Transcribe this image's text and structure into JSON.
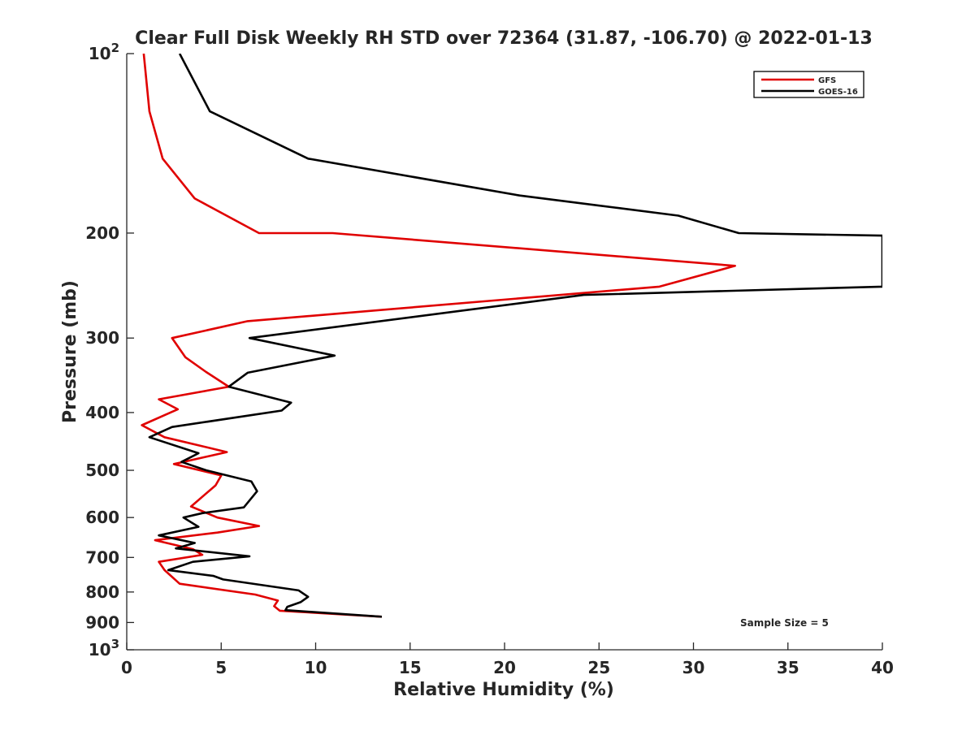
{
  "chart_data": {
    "type": "line",
    "title": "Clear Full Disk Weekly RH STD over 72364 (31.87, -106.70) @ 2022-01-13",
    "xlabel": "Relative Humidity (%)",
    "ylabel": "Pressure (mb)",
    "xlim": [
      0,
      40
    ],
    "ylim": [
      100,
      1000
    ],
    "y_scale": "log",
    "y_reversed": true,
    "grid": false,
    "legend_position": "top-right",
    "x_ticks": [
      "0",
      "5",
      "10",
      "15",
      "20",
      "25",
      "30",
      "35",
      "40"
    ],
    "x_tick_values": [
      0,
      5,
      10,
      15,
      20,
      25,
      30,
      35,
      40
    ],
    "y_ticks": [
      {
        "value": 100,
        "base": "10",
        "exp": "2"
      },
      {
        "value": 200,
        "base": "200",
        "exp": ""
      },
      {
        "value": 300,
        "base": "300",
        "exp": ""
      },
      {
        "value": 400,
        "base": "400",
        "exp": ""
      },
      {
        "value": 500,
        "base": "500",
        "exp": ""
      },
      {
        "value": 600,
        "base": "600",
        "exp": ""
      },
      {
        "value": 700,
        "base": "700",
        "exp": ""
      },
      {
        "value": 800,
        "base": "800",
        "exp": ""
      },
      {
        "value": 900,
        "base": "900",
        "exp": ""
      },
      {
        "value": 1000,
        "base": "10",
        "exp": "3"
      }
    ],
    "annotation": "Sample Size = 5",
    "series": [
      {
        "name": "GFS",
        "color": "#e00000",
        "points": [
          [
            0.9,
            100
          ],
          [
            1.2,
            125
          ],
          [
            1.9,
            150
          ],
          [
            3.6,
            175
          ],
          [
            7,
            200
          ],
          [
            10.9,
            200
          ],
          [
            32.2,
            227
          ],
          [
            28.2,
            246
          ],
          [
            6.4,
            281
          ],
          [
            2.4,
            300
          ],
          [
            3.1,
            323
          ],
          [
            4.2,
            342
          ],
          [
            5.4,
            362
          ],
          [
            1.7,
            380
          ],
          [
            2.7,
            395
          ],
          [
            0.8,
            420
          ],
          [
            2.0,
            440
          ],
          [
            5.3,
            466
          ],
          [
            2.5,
            488
          ],
          [
            5.0,
            510
          ],
          [
            4.7,
            530
          ],
          [
            3.4,
            575
          ],
          [
            4.8,
            600
          ],
          [
            7.0,
            620
          ],
          [
            4.8,
            636
          ],
          [
            1.5,
            655
          ],
          [
            3.5,
            678
          ],
          [
            4.0,
            693
          ],
          [
            1.7,
            712
          ],
          [
            2.0,
            735
          ],
          [
            2.8,
            775
          ],
          [
            6.8,
            808
          ],
          [
            8.0,
            827
          ],
          [
            7.8,
            845
          ],
          [
            8.1,
            860
          ],
          [
            13.5,
            880
          ]
        ]
      },
      {
        "name": "GOES-16",
        "color": "#000000",
        "points": [
          [
            2.8,
            100
          ],
          [
            4.4,
            125
          ],
          [
            9.6,
            150
          ],
          [
            20.8,
            173
          ],
          [
            29.2,
            187
          ],
          [
            32.4,
            200
          ],
          [
            40,
            202
          ],
          [
            40,
            246
          ],
          [
            24.2,
            254
          ],
          [
            6.5,
            300
          ],
          [
            11.0,
            321
          ],
          [
            6.4,
            343
          ],
          [
            5.4,
            362
          ],
          [
            8.7,
            385
          ],
          [
            8.2,
            397
          ],
          [
            2.4,
            423
          ],
          [
            1.2,
            440
          ],
          [
            3.8,
            468
          ],
          [
            2.9,
            484
          ],
          [
            4.2,
            500
          ],
          [
            6.6,
            522
          ],
          [
            6.9,
            542
          ],
          [
            6.2,
            577
          ],
          [
            4.0,
            590
          ],
          [
            3.0,
            600
          ],
          [
            3.8,
            622
          ],
          [
            1.7,
            643
          ],
          [
            3.6,
            662
          ],
          [
            2.6,
            676
          ],
          [
            6.5,
            697
          ],
          [
            3.5,
            712
          ],
          [
            2.2,
            735
          ],
          [
            4.6,
            752
          ],
          [
            5.1,
            762
          ],
          [
            9.1,
            795
          ],
          [
            9.6,
            815
          ],
          [
            9.2,
            832
          ],
          [
            8.5,
            847
          ],
          [
            8.4,
            858
          ],
          [
            13.5,
            880
          ]
        ]
      }
    ]
  }
}
